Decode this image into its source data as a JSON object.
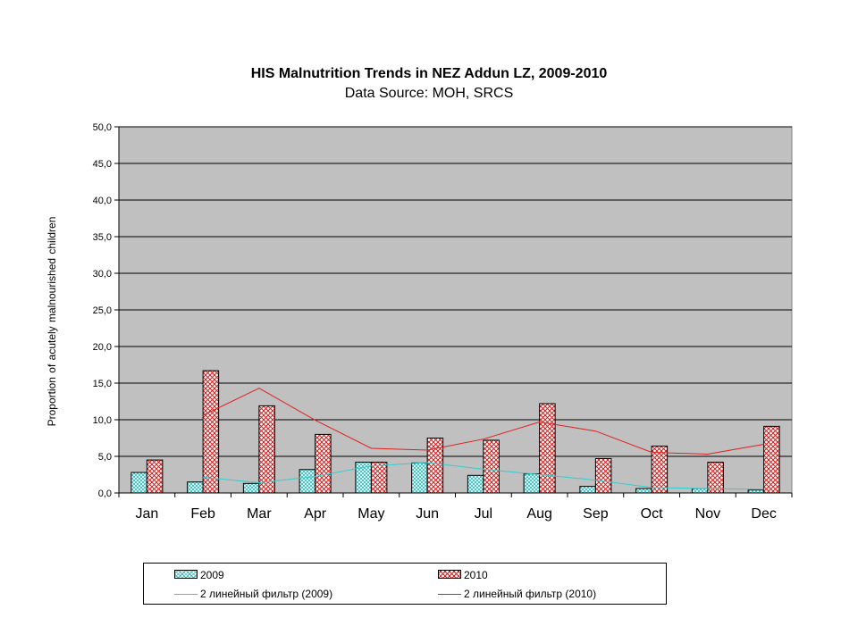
{
  "chart_data": {
    "type": "bar",
    "title": "HIS Malnutrition Trends in NEZ Addun LZ, 2009-2010",
    "subtitle": "Data Source: MOH, SRCS",
    "xlabel": "",
    "ylabel": "Proportion of  acutely malnourished children",
    "ylim": [
      0,
      50
    ],
    "yticks": [
      "0,0",
      "5,0",
      "10,0",
      "15,0",
      "20,0",
      "25,0",
      "30,0",
      "35,0",
      "40,0",
      "45,0",
      "50,0"
    ],
    "categories": [
      "Jan",
      "Feb",
      "Mar",
      "Apr",
      "May",
      "Jun",
      "Jul",
      "Aug",
      "Sep",
      "Oct",
      "Nov",
      "Dec"
    ],
    "series": [
      {
        "name": "2009",
        "kind": "bar",
        "color": "#7fd6d6",
        "values": [
          2.8,
          1.5,
          1.3,
          3.2,
          4.2,
          4.1,
          2.4,
          2.6,
          0.9,
          0.6,
          0.6,
          0.4
        ]
      },
      {
        "name": "2010",
        "kind": "bar",
        "color": "#d94a4a",
        "values": [
          4.5,
          16.7,
          11.9,
          8.0,
          4.2,
          7.5,
          7.2,
          12.2,
          4.7,
          6.4,
          4.2,
          9.1
        ]
      },
      {
        "name": "2 линейный фильтр (2009)",
        "kind": "moving-average",
        "of": "2009",
        "color": "#33cccc",
        "values": [
          null,
          2.15,
          1.4,
          2.25,
          3.7,
          4.15,
          3.25,
          2.5,
          1.75,
          0.75,
          0.6,
          0.5
        ]
      },
      {
        "name": "2 линейный фильтр (2010)",
        "kind": "moving-average",
        "of": "2010",
        "color": "#e02020",
        "values": [
          null,
          10.6,
          14.3,
          9.95,
          6.1,
          5.85,
          7.35,
          9.7,
          8.45,
          5.55,
          5.3,
          6.65
        ]
      }
    ],
    "grid": true,
    "plot_background": "#c0c0c0",
    "legend_position": "bottom"
  }
}
